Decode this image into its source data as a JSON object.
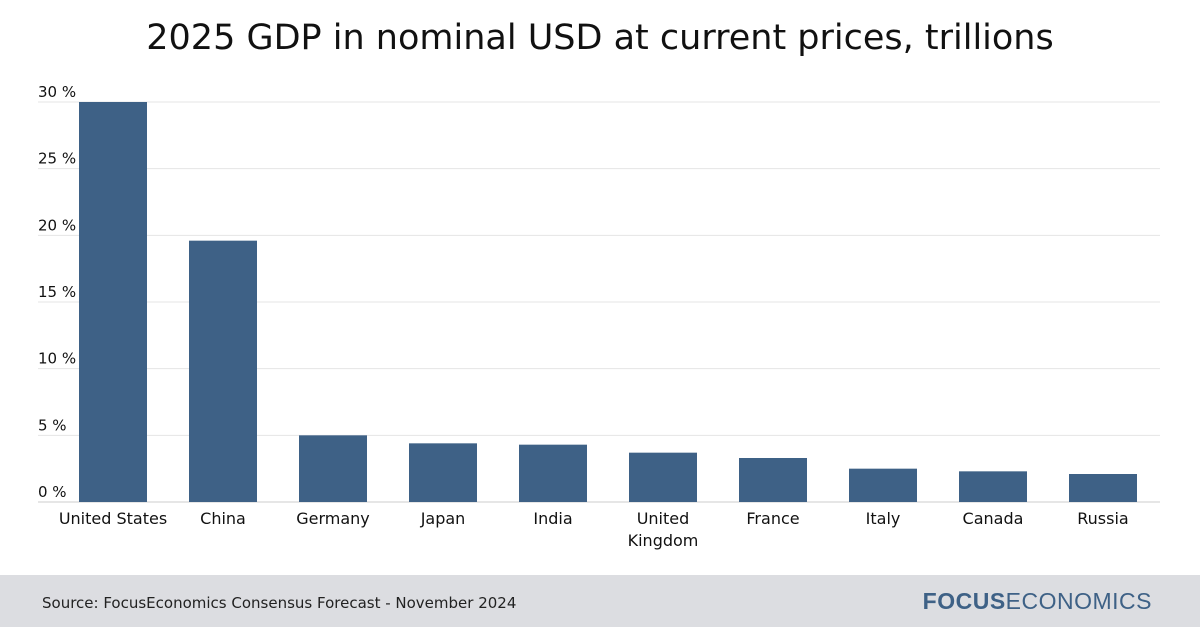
{
  "chart_data": {
    "type": "bar",
    "title": "2025 GDP in nominal USD at current prices, trillions",
    "categories": [
      "United States",
      "China",
      "Germany",
      "Japan",
      "India",
      "United Kingdom",
      "France",
      "Italy",
      "Canada",
      "Russia"
    ],
    "category_label_lines": [
      [
        "United States"
      ],
      [
        "China"
      ],
      [
        "Germany"
      ],
      [
        "Japan"
      ],
      [
        "India"
      ],
      [
        "United",
        "Kingdom"
      ],
      [
        "France"
      ],
      [
        "Italy"
      ],
      [
        "Canada"
      ],
      [
        "Russia"
      ]
    ],
    "values": [
      30.0,
      19.6,
      5.0,
      4.4,
      4.3,
      3.7,
      3.3,
      2.5,
      2.3,
      2.1
    ],
    "yticks": [
      0,
      5,
      10,
      15,
      20,
      25,
      30
    ],
    "ytick_labels": [
      "0 %",
      "5 %",
      "10 %",
      "15 %",
      "20 %",
      "25 %",
      "30 %"
    ],
    "ylim": [
      0,
      30
    ],
    "xlabel": "",
    "ylabel": "",
    "grid": true
  },
  "colors": {
    "bar": "#3e6186",
    "grid": "#e4e4e4",
    "axis_text": "#111111",
    "footer_bg": "#dcdde1",
    "logo_bold": "#3e6186",
    "logo_light": "#3e6186"
  },
  "footer": {
    "source": "Source: FocusEconomics Consensus Forecast - November 2024",
    "logo_bold": "FOCUS",
    "logo_light": "ECONOMICS"
  }
}
